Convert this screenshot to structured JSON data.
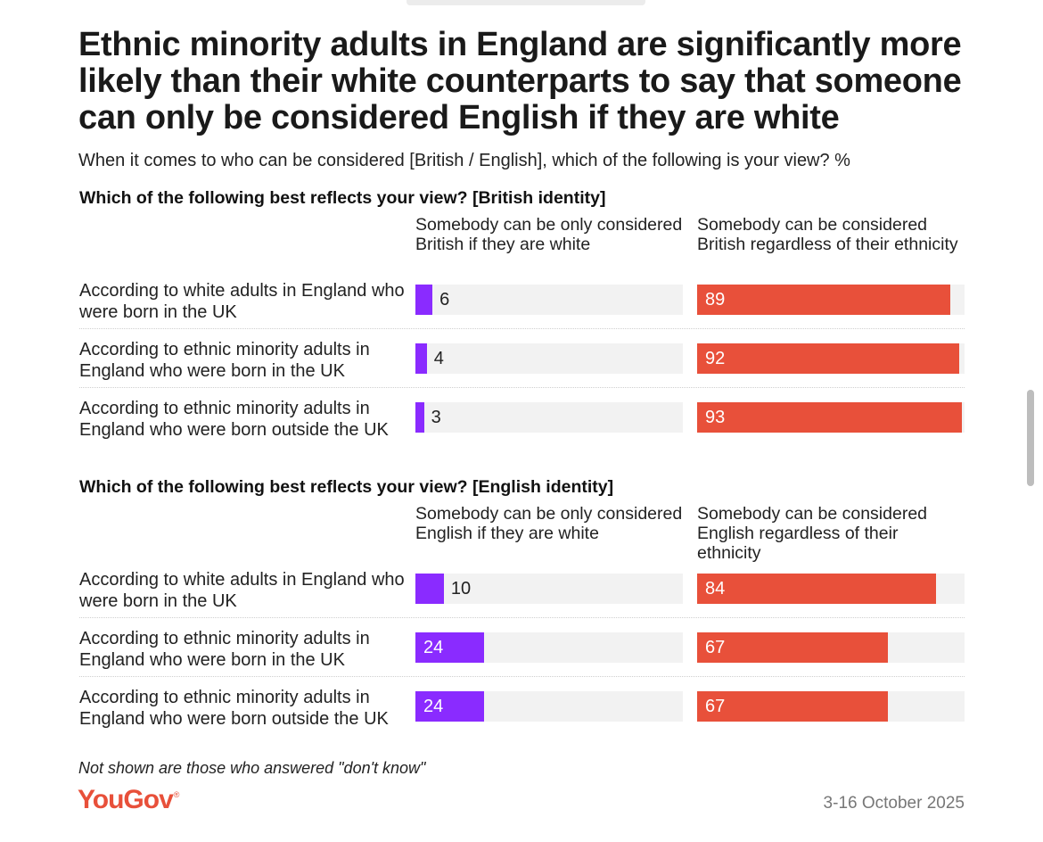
{
  "header": {
    "title": "Ethnic minority adults in England are significantly more likely than their white counterparts to say that someone can only be considered English if they are white",
    "subtitle": "When it comes to who can be considered [British / English], which of the following is your view? %"
  },
  "chart_data": [
    {
      "type": "bar",
      "title": "Which of the following best reflects your view? [British identity]",
      "categories": [
        "According to white adults in England who were born in the UK",
        "According to ethnic minority adults in England who were born in the UK",
        "According to ethnic minority adults in England who were born outside the UK"
      ],
      "series": [
        {
          "name": "Somebody can be only considered British if they are white",
          "values": [
            6,
            4,
            3
          ],
          "color": "#8a2bff"
        },
        {
          "name": "Somebody can be considered British regardless of their ethnicity",
          "values": [
            89,
            92,
            93
          ],
          "color": "#e8503a"
        }
      ],
      "ylim": [
        0,
        100
      ]
    },
    {
      "type": "bar",
      "title": "Which of the following best reflects your view? [English identity]",
      "categories": [
        "According to white adults in England who were born in the UK",
        "According to ethnic minority adults in England who were born in the UK",
        "According to ethnic minority adults in England who were born outside the UK"
      ],
      "series": [
        {
          "name": "Somebody can be only considered English if they are white",
          "values": [
            10,
            24,
            24
          ],
          "color": "#8a2bff"
        },
        {
          "name": "Somebody can be considered English regardless of their ethnicity",
          "values": [
            84,
            67,
            67
          ],
          "color": "#e8503a"
        }
      ],
      "ylim": [
        0,
        100
      ]
    }
  ],
  "footer": {
    "note": "Not shown are those who answered \"don't know\"",
    "logo_text": "YouGov",
    "logo_mark": "®",
    "date": "3-16 October 2025"
  }
}
